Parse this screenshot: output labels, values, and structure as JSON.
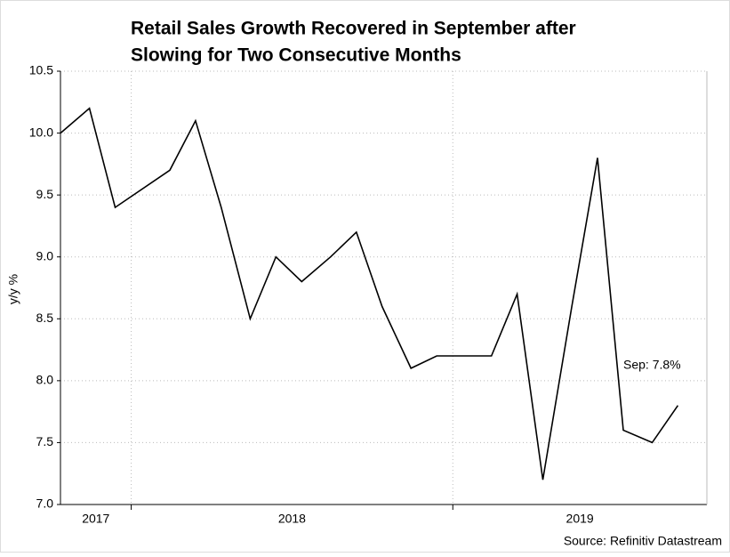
{
  "chart_data": {
    "type": "line",
    "title": [
      "Retail Sales Growth Recovered in September after",
      "Slowing for Two Consecutive Months"
    ],
    "y_label": "y/y %",
    "source": "Source: Refinitiv Datastream",
    "annotation": "Sep: 7.8%",
    "x": [
      2017.78,
      2017.87,
      2017.95,
      2018.12,
      2018.2,
      2018.28,
      2018.37,
      2018.45,
      2018.53,
      2018.62,
      2018.7,
      2018.78,
      2018.87,
      2018.95,
      2019.12,
      2019.2,
      2019.28,
      2019.37,
      2019.45,
      2019.53,
      2019.62,
      2019.7
    ],
    "series": [
      {
        "name": "Retail sales",
        "color": "#000000",
        "values": [
          10.0,
          10.2,
          9.4,
          9.7,
          10.1,
          9.4,
          8.5,
          9.0,
          8.8,
          9.0,
          9.2,
          8.6,
          8.1,
          8.2,
          8.2,
          8.7,
          7.2,
          8.6,
          9.8,
          7.6,
          7.5,
          7.8
        ]
      }
    ],
    "xlim": [
      2017.78,
      2019.79
    ],
    "xticks": [
      2018,
      2019
    ],
    "x_labels": [
      "2017",
      "2018",
      "2019"
    ],
    "ylim": [
      7,
      10.5
    ],
    "yticks": [
      {
        "value": 7,
        "label": "7.0"
      },
      7.5,
      {
        "value": 8,
        "label": "8.0"
      },
      8.5,
      {
        "value": 9,
        "label": "9.0"
      },
      9.5,
      {
        "value": 10,
        "label": "10.0"
      },
      10.5
    ],
    "grid": true
  }
}
